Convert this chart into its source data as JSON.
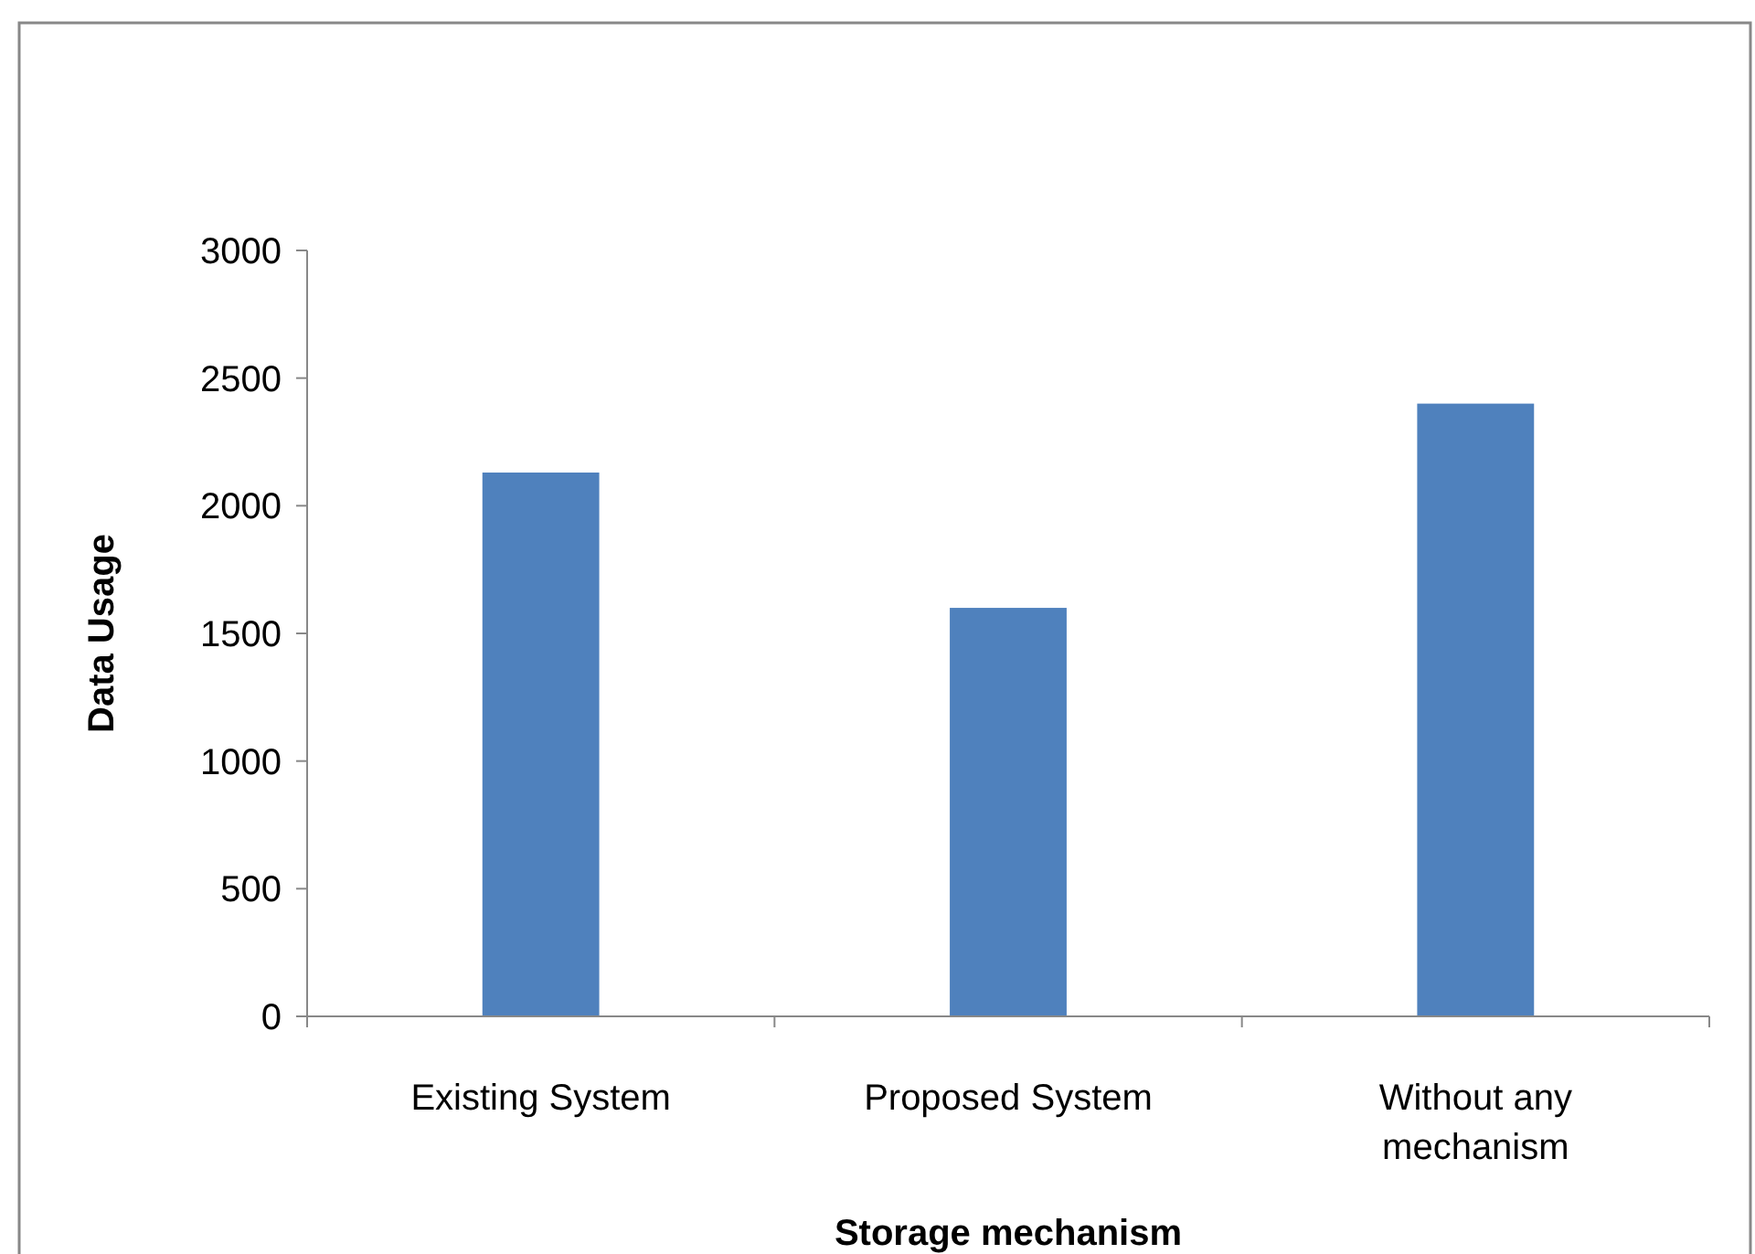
{
  "chart_data": {
    "type": "bar",
    "xlabel": "Storage mechanism",
    "ylabel": "Data Usage",
    "categories": [
      "Existing System",
      "Proposed System",
      "Without any mechanism"
    ],
    "values": [
      2130,
      1600,
      2400
    ],
    "color": "#4f81bd",
    "ylim": [
      0,
      3000
    ],
    "yticks": [
      0,
      500,
      1000,
      1500,
      2000,
      2500,
      3000
    ],
    "grid": false
  }
}
